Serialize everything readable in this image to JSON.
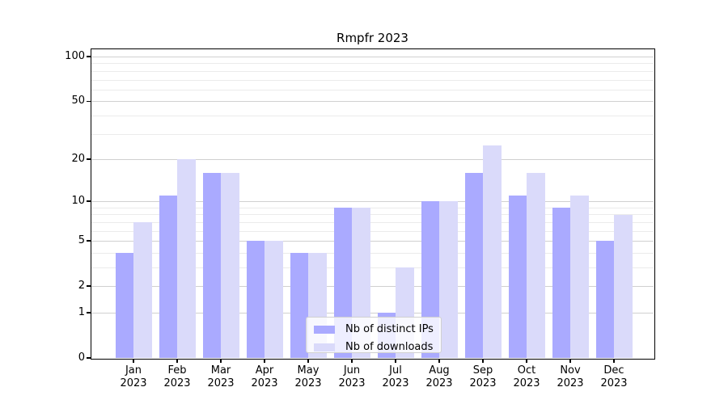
{
  "chart_data": {
    "type": "bar",
    "title": "Rmpfr 2023",
    "categories": [
      {
        "month": "Jan",
        "year": "2023"
      },
      {
        "month": "Feb",
        "year": "2023"
      },
      {
        "month": "Mar",
        "year": "2023"
      },
      {
        "month": "Apr",
        "year": "2023"
      },
      {
        "month": "May",
        "year": "2023"
      },
      {
        "month": "Jun",
        "year": "2023"
      },
      {
        "month": "Jul",
        "year": "2023"
      },
      {
        "month": "Aug",
        "year": "2023"
      },
      {
        "month": "Sep",
        "year": "2023"
      },
      {
        "month": "Oct",
        "year": "2023"
      },
      {
        "month": "Nov",
        "year": "2023"
      },
      {
        "month": "Dec",
        "year": "2023"
      }
    ],
    "series": [
      {
        "name": "Nb of distinct IPs",
        "color": "#aaaaff",
        "values": [
          4,
          11,
          16,
          5,
          4,
          9,
          1,
          10,
          16,
          11,
          9,
          5
        ]
      },
      {
        "name": "Nb of downloads",
        "color": "#dadafa",
        "values": [
          7,
          20,
          16,
          5,
          4,
          9,
          3,
          10,
          25,
          16,
          11,
          8
        ]
      }
    ],
    "xlabel": "",
    "ylabel": "",
    "y_axis": {
      "scale": "log1p",
      "ylim": [
        0,
        112
      ],
      "major_ticks": [
        0,
        1,
        2,
        5,
        10,
        20,
        50,
        100
      ],
      "tick_labels": [
        "0",
        "1",
        "2",
        "5",
        "10",
        "20",
        "50",
        "100"
      ],
      "minor_gridlines": [
        3,
        4,
        6,
        7,
        8,
        9,
        30,
        40,
        60,
        70,
        80,
        90
      ]
    },
    "grid": true,
    "legend": {
      "position": "lower center inside",
      "entries": [
        "Nb of distinct IPs",
        "Nb of downloads"
      ]
    },
    "colors": {
      "bar_distinct_ips": "#aaaaff",
      "bar_downloads": "#dadafa",
      "major_grid": "#d0d0d0",
      "minor_grid": "#ebebeb",
      "axis": "#000000",
      "legend_border": "#d0d0d0"
    }
  }
}
